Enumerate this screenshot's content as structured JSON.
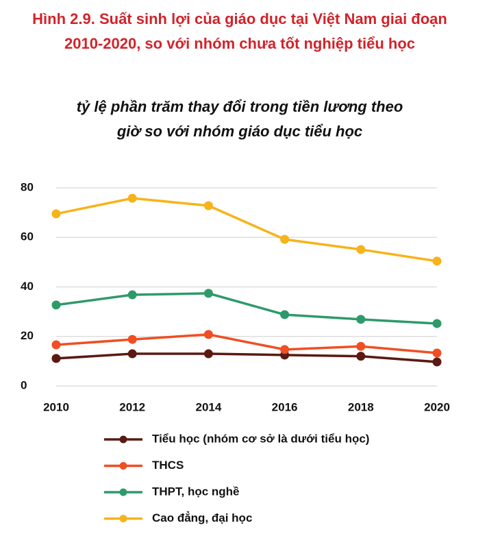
{
  "chart_data": {
    "type": "line",
    "title": "Hình 2.9. Suất sinh lợi của giáo dục tại Việt Nam giai đoạn 2010-2020, so với nhóm chưa tốt nghiệp tiểu học",
    "subtitle": "tỷ lệ phần trăm thay đổi trong tiền lương theo giờ so với nhóm giáo dục tiểu học",
    "x": [
      2010,
      2012,
      2014,
      2016,
      2018,
      2020
    ],
    "xlim": [
      2010,
      2020
    ],
    "xticks": [
      2010,
      2012,
      2014,
      2016,
      2018,
      2020
    ],
    "ylim": [
      0,
      80
    ],
    "yticks": [
      0,
      20,
      40,
      60,
      80
    ],
    "grid": true,
    "series": [
      {
        "name": "Tiểu học (nhóm cơ sở là dưới tiểu học)",
        "color": "#5a1a12",
        "values": [
          11.1,
          13,
          13,
          12.5,
          12,
          9.7
        ]
      },
      {
        "name": "THCS",
        "color": "#f04e23",
        "values": [
          16.6,
          18.8,
          20.8,
          14.7,
          16,
          13.3
        ]
      },
      {
        "name": "THPT, học nghề",
        "color": "#2e9a6a",
        "values": [
          32.7,
          36.8,
          37.4,
          28.8,
          26.9,
          25.2
        ]
      },
      {
        "name": "Cao đẳng, đại học",
        "color": "#f7b31a",
        "values": [
          69.5,
          75.8,
          72.8,
          59.2,
          55.1,
          50.4
        ]
      }
    ]
  }
}
